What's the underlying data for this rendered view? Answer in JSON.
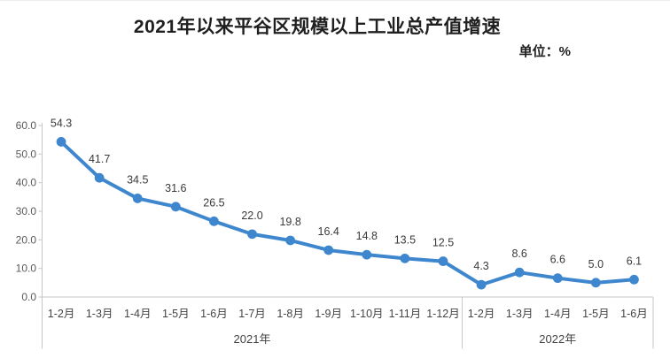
{
  "title": "2021年以来平谷区规模以上工业总产值增速",
  "unit_label": "单位：%",
  "colors": {
    "line": "#3E87CE",
    "axis": "#C6C6C6",
    "tick_text": "#595959",
    "category_text": "#444444",
    "value_label_text": "#3a3a3a",
    "title_text": "#1f1f1f"
  },
  "chart_data": {
    "type": "line",
    "title": "2021年以来平谷区规模以上工业总产值增速",
    "unit": "单位：%",
    "categories": [
      "1-2月",
      "1-3月",
      "1-4月",
      "1-5月",
      "1-6月",
      "1-7月",
      "1-8月",
      "1-9月",
      "1-10月",
      "1-11月",
      "1-12月",
      "1-2月",
      "1-3月",
      "1-4月",
      "1-5月",
      "1-6月"
    ],
    "values": [
      54.3,
      41.7,
      34.5,
      31.6,
      26.5,
      22.0,
      19.8,
      16.4,
      14.8,
      13.5,
      12.5,
      4.3,
      8.6,
      6.6,
      5.0,
      6.1
    ],
    "value_labels": [
      "54.3",
      "41.7",
      "34.5",
      "31.6",
      "26.5",
      "22.0",
      "19.8",
      "16.4",
      "14.8",
      "13.5",
      "12.5",
      "4.3",
      "8.6",
      "6.6",
      "5.0",
      "6.1"
    ],
    "groups": [
      {
        "label": "2021年",
        "span": 11
      },
      {
        "label": "2022年",
        "span": 5
      }
    ],
    "ylim": [
      0,
      60
    ],
    "ytick_step": 10,
    "ytick_labels": [
      "0.0",
      "10.0",
      "20.0",
      "30.0",
      "40.0",
      "50.0",
      "60.0"
    ],
    "grid": false,
    "legend": "none",
    "xlabel": "",
    "ylabel": ""
  }
}
